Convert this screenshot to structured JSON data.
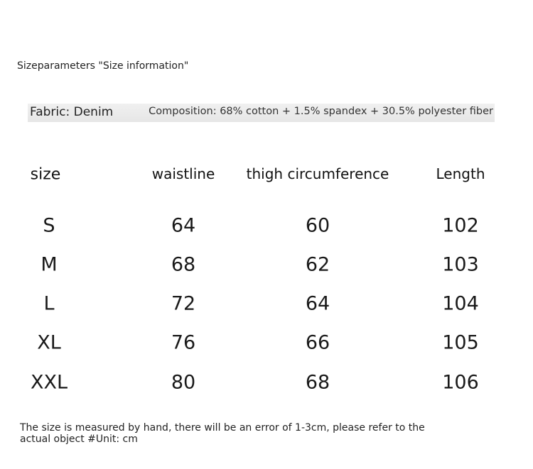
{
  "title": "Sizeparameters \"Size information\"",
  "fabric": "Fabric: Denim",
  "composition": "Composition: 68% cotton + 1.5% spandex + 30.5% polyester fiber",
  "table": {
    "headers": [
      "size",
      "waistline",
      "thigh circumference",
      "Length"
    ],
    "rows": [
      [
        "S",
        "64",
        "60",
        "102"
      ],
      [
        "M",
        "68",
        "62",
        "103"
      ],
      [
        "L",
        "72",
        "64",
        "104"
      ],
      [
        "XL",
        "76",
        "66",
        "105"
      ],
      [
        "XXL",
        "80",
        "68",
        "106"
      ]
    ]
  },
  "note": "The size is measured by hand, there will be an error of 1-3cm, please refer to the actual object #Unit: cm"
}
